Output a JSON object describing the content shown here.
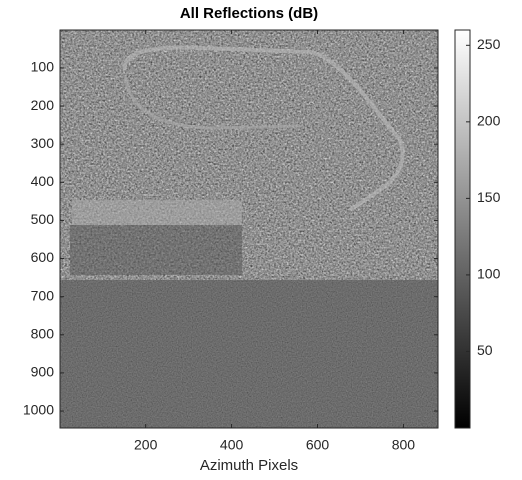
{
  "chart_data": {
    "type": "image",
    "title": "All Reflections (dB)",
    "xlabel": "Azimuth Pixels",
    "xlim": [
      0.5,
      880.5
    ],
    "xticks": [
      200,
      400,
      600,
      800
    ],
    "ylim": [
      0.5,
      1044.5
    ],
    "yticks": [
      100,
      200,
      300,
      400,
      500,
      600,
      700,
      800,
      900,
      1000
    ],
    "y_reversed": true,
    "colormap": "gray",
    "colorbar": {
      "clim": [
        0,
        260
      ],
      "ticks": [
        50,
        100,
        150,
        200,
        250
      ]
    }
  }
}
